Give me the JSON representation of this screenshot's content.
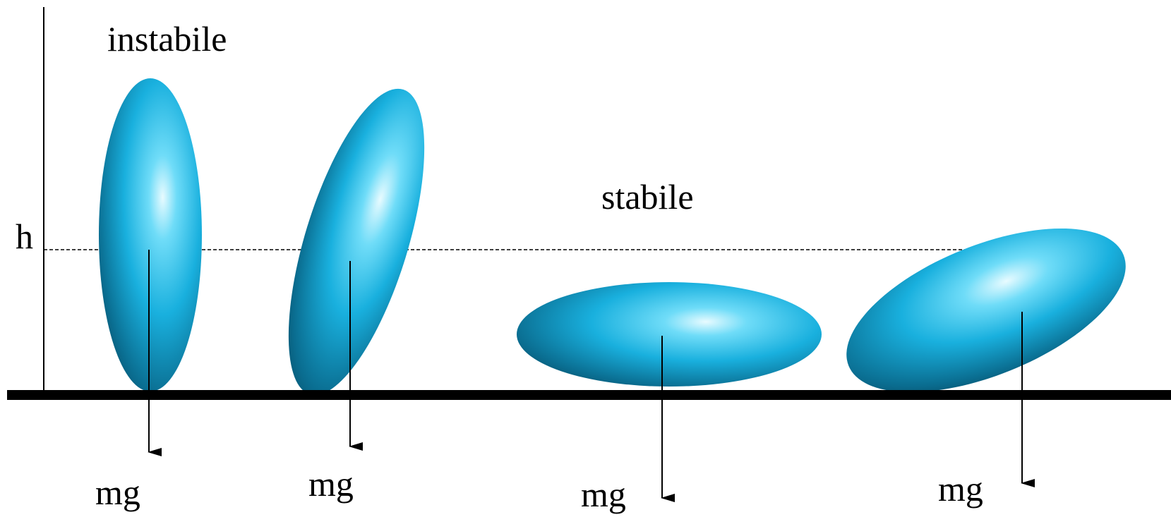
{
  "labels": {
    "unstable": "instabile",
    "stable": "stabile",
    "height": "h",
    "weight": [
      "mg",
      "mg",
      "mg",
      "mg"
    ]
  },
  "colors": {
    "ellipsoid_light": "#e8fbff",
    "ellipsoid_mid": "#19b8e6",
    "ellipsoid_dark": "#064d66",
    "ground": "#000000",
    "line": "#000000"
  }
}
